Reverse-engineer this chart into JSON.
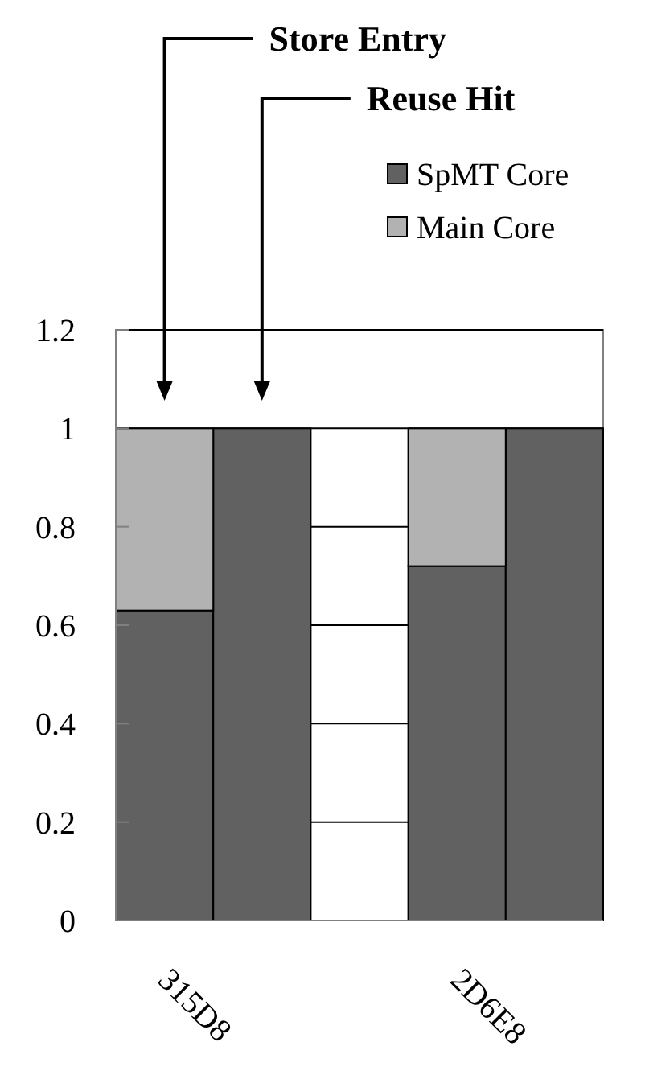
{
  "chart_data": {
    "type": "bar",
    "stacked": true,
    "categories": [
      "315D8",
      null,
      null,
      "2D6E8",
      null
    ],
    "series": [
      {
        "name": "SpMT Core",
        "color": "#616161",
        "values": [
          0.63,
          1,
          null,
          0.72,
          1
        ]
      },
      {
        "name": "Main Core",
        "color": "#b2b2b2",
        "values": [
          0.37,
          0,
          null,
          0.28,
          0
        ]
      }
    ],
    "ylim": [
      0,
      1.2
    ],
    "yticks": [
      0,
      0.2,
      0.4,
      0.6,
      0.8,
      1,
      1.2
    ],
    "grid": true,
    "legend": "top right",
    "annotations": [
      "Store Entry",
      "Reuse Hit"
    ]
  }
}
